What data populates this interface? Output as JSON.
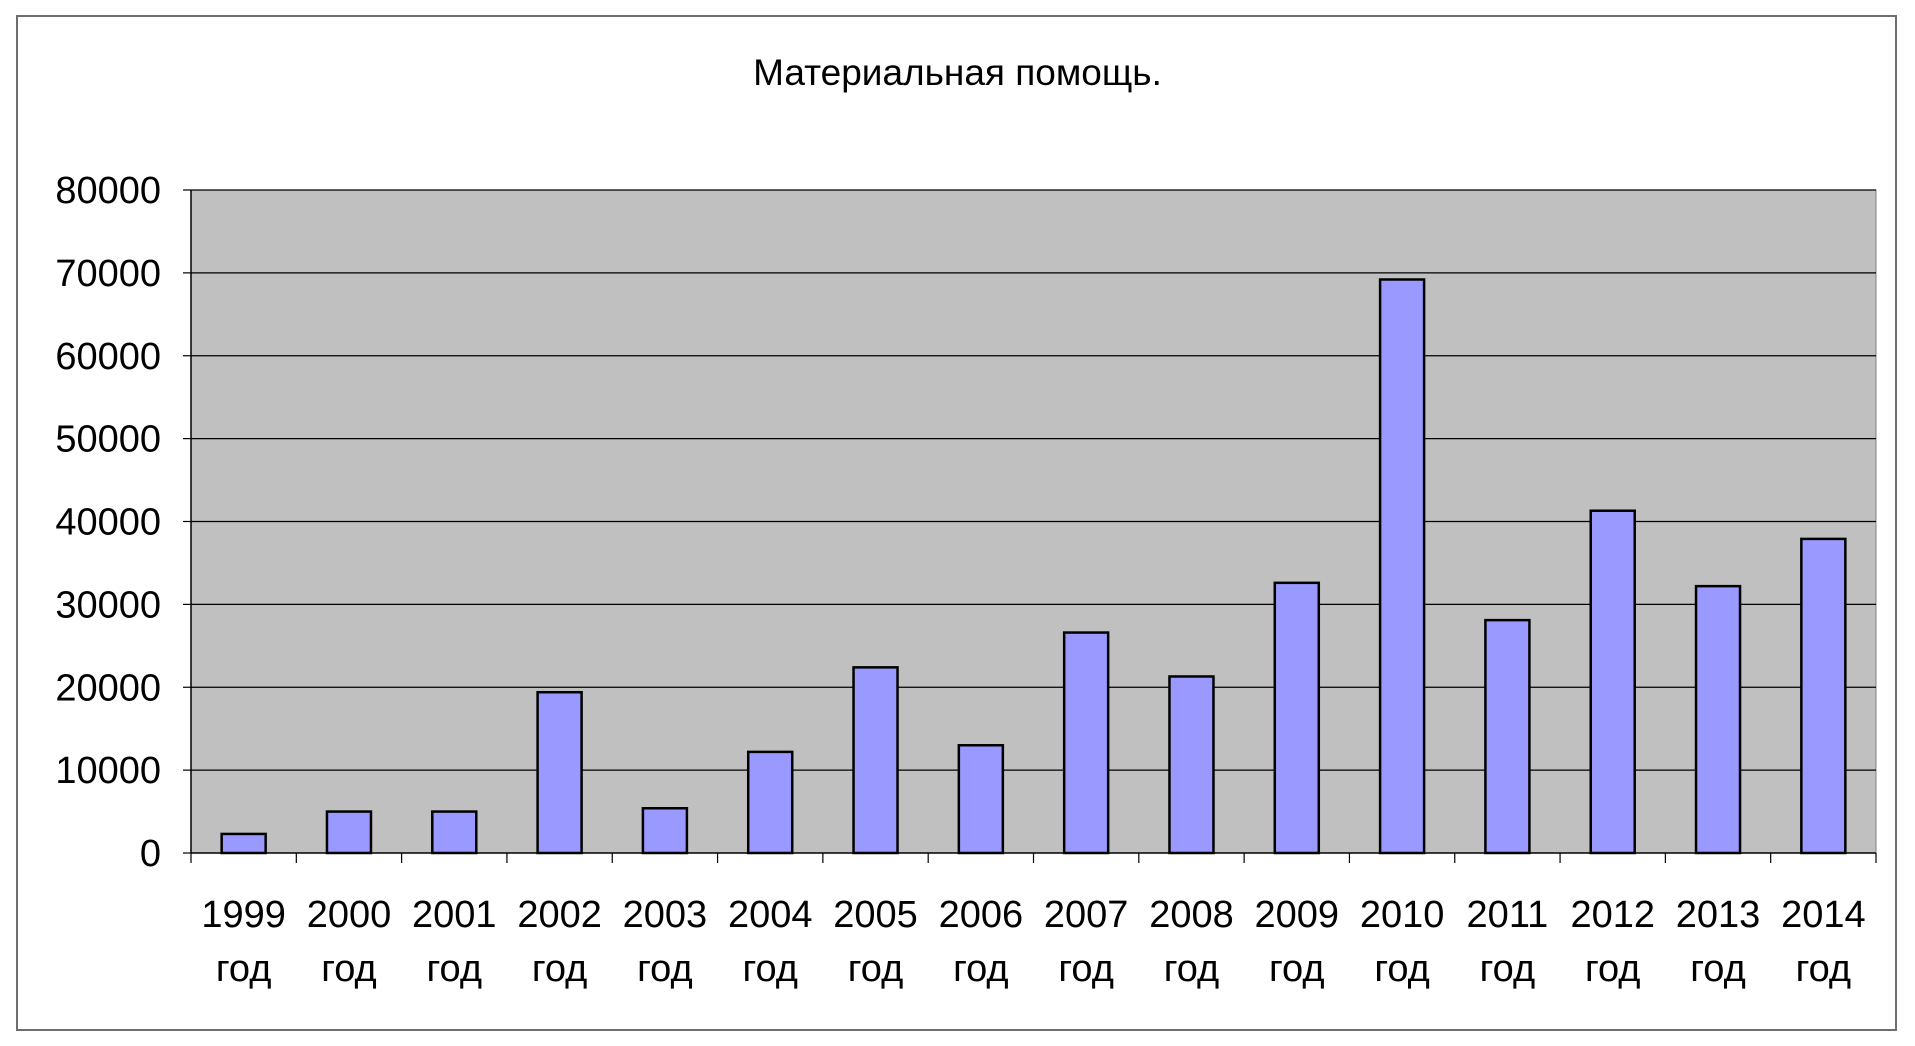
{
  "chart_data": {
    "type": "bar",
    "title": "Материальная помощь.",
    "categories": [
      [
        "1999",
        "год"
      ],
      [
        "2000",
        "год"
      ],
      [
        "2001",
        "год"
      ],
      [
        "2002",
        "год"
      ],
      [
        "2003",
        "год"
      ],
      [
        "2004",
        "год"
      ],
      [
        "2005",
        "год"
      ],
      [
        "2006",
        "год"
      ],
      [
        "2007",
        "год"
      ],
      [
        "2008",
        "год"
      ],
      [
        "2009",
        "год"
      ],
      [
        "2010",
        "год"
      ],
      [
        "2011",
        "год"
      ],
      [
        "2012",
        "год"
      ],
      [
        "2013",
        "год"
      ],
      [
        "2014",
        "год"
      ]
    ],
    "values": [
      2300,
      5000,
      5000,
      19400,
      5400,
      12200,
      22400,
      13000,
      26600,
      21300,
      32600,
      69200,
      28100,
      41300,
      32200,
      37900
    ],
    "ylim": [
      0,
      80000
    ],
    "yticks": [
      "0",
      "10000",
      "20000",
      "30000",
      "40000",
      "50000",
      "60000",
      "70000",
      "80000"
    ],
    "xlabel": "",
    "ylabel": "",
    "grid": true,
    "legend": "none",
    "colors": {
      "bar_fill": "#9999ff",
      "bar_stroke": "#000000",
      "plot_background": "#c0c0c0",
      "gridline": "#000000",
      "frame": "#6e6e6e"
    }
  }
}
